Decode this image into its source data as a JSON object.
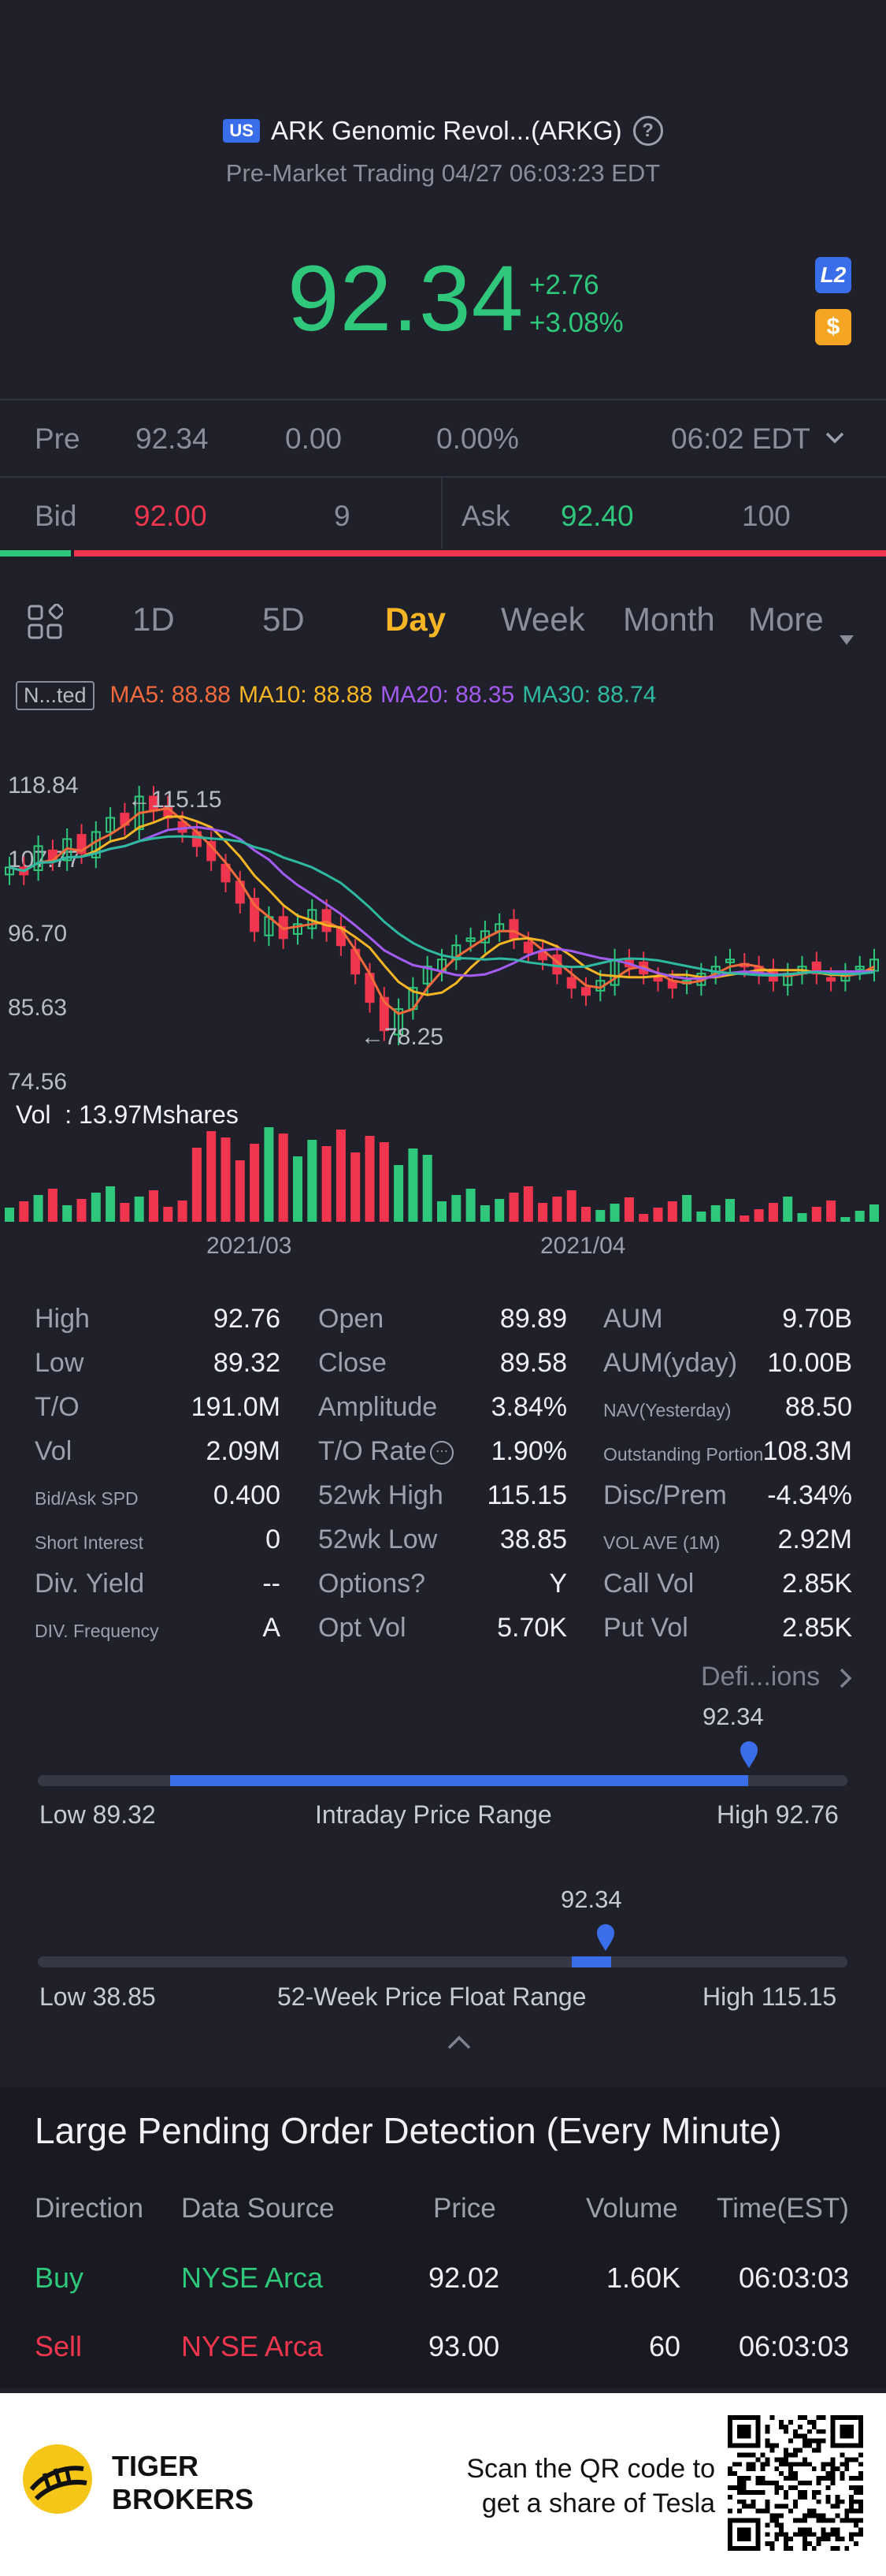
{
  "header": {
    "market_badge": "US",
    "stock_name": "ARK Genomic Revol...(ARKG)",
    "session_line": "Pre-Market Trading 04/27 06:03:23 EDT"
  },
  "quote": {
    "price": "92.34",
    "change": "+2.76",
    "change_pct": "+3.08%",
    "l2_badge": "L2",
    "dollar_badge": "$"
  },
  "pre": {
    "label": "Pre",
    "price": "92.34",
    "change": "0.00",
    "change_pct": "0.00%",
    "time": "06:02 EDT"
  },
  "bidask": {
    "bid_label": "Bid",
    "bid_price": "92.00",
    "bid_size": "9",
    "ask_label": "Ask",
    "ask_price": "92.40",
    "ask_size": "100",
    "bid_fraction": 0.08
  },
  "tabs": [
    "1D",
    "5D",
    "Day",
    "Week",
    "Month",
    "More"
  ],
  "active_tab": "Day",
  "ma": {
    "box": "N...ted",
    "ma5": "MA5: 88.88",
    "ma10": "MA10: 88.88",
    "ma20": "MA20: 88.35",
    "ma30": "MA30: 88.74",
    "colors": {
      "ma5": "#f26a3c",
      "ma10": "#f5b524",
      "ma20": "#a35cf0",
      "ma30": "#2fb9a0"
    }
  },
  "chart_data": {
    "type": "candlestick",
    "y_ticks": [
      "118.84",
      "107.77",
      "96.70",
      "85.63",
      "74.56"
    ],
    "high_annotation": "←115.15",
    "low_annotation": "←78.25",
    "x_ticks": [
      "2021/03",
      "2021/04"
    ],
    "volume_label": "Vol  : 13.97Mshares",
    "ylim": [
      74.56,
      118.84
    ]
  },
  "stats": [
    {
      "label": "High",
      "value": "92.76"
    },
    {
      "label": "Open",
      "value": "89.89"
    },
    {
      "label": "AUM",
      "value": "9.70B"
    },
    {
      "label": "Low",
      "value": "89.32"
    },
    {
      "label": "Close",
      "value": "89.58"
    },
    {
      "label": "AUM(yday)",
      "value": "10.00B"
    },
    {
      "label": "T/O",
      "value": "191.0M"
    },
    {
      "label": "Amplitude",
      "value": "3.84%"
    },
    {
      "label": "NAV(Yesterday)",
      "value": "88.50"
    },
    {
      "label": "Vol",
      "value": "2.09M"
    },
    {
      "label": "T/O Rate",
      "value": "1.90%"
    },
    {
      "label": "Outstanding Portion",
      "value": "108.3M"
    },
    {
      "label": "Bid/Ask SPD",
      "value": "0.400"
    },
    {
      "label": "52wk High",
      "value": "115.15"
    },
    {
      "label": "Disc/Prem",
      "value": "-4.34%"
    },
    {
      "label": "Short Interest",
      "value": "0"
    },
    {
      "label": "52wk Low",
      "value": "38.85"
    },
    {
      "label": "VOL AVE (1M)",
      "value": "2.92M"
    },
    {
      "label": "Div. Yield",
      "value": "--"
    },
    {
      "label": "Options?",
      "value": "Y"
    },
    {
      "label": "Call Vol",
      "value": "2.85K"
    },
    {
      "label": "DIV. Frequency",
      "value": "A"
    },
    {
      "label": "Opt Vol",
      "value": "5.70K"
    },
    {
      "label": "Put Vol",
      "value": "2.85K"
    }
  ],
  "definitions_link": "Defi...ions",
  "intraday_range": {
    "current": "92.34",
    "low_label": "Low 89.32",
    "caption": "Intraday Price Range",
    "high_label": "High 92.76",
    "position": 0.88
  },
  "week52_range": {
    "current": "92.34",
    "low_label": "Low 38.85",
    "caption": "52-Week Price Float Range",
    "high_label": "High 115.15",
    "position": 0.7
  },
  "pending": {
    "title": "Large Pending Order Detection (Every Minute)",
    "headers": [
      "Direction",
      "Data Source",
      "Price",
      "Volume",
      "Time(EST)"
    ],
    "rows": [
      {
        "direction": "Buy",
        "source": "NYSE Arca",
        "price": "92.02",
        "volume": "1.60K",
        "time": "06:03:03"
      },
      {
        "direction": "Sell",
        "source": "NYSE Arca",
        "price": "93.00",
        "volume": "60",
        "time": "06:03:03"
      }
    ]
  },
  "footer": {
    "brand_line1": "TIGER",
    "brand_line2": "BROKERS",
    "cta_line1": "Scan the QR code to",
    "cta_line2": "get a share of Tesla"
  }
}
